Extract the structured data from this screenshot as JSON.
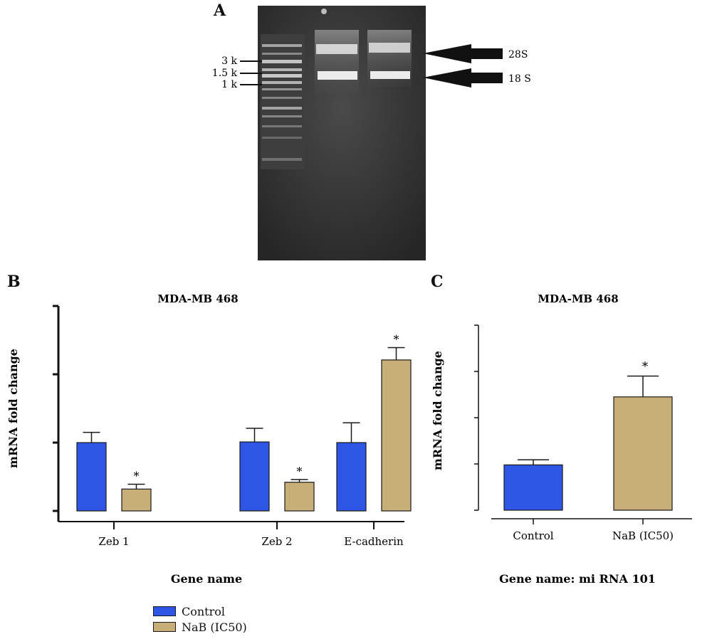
{
  "panels": {
    "a_label": "A",
    "b_label": "B",
    "c_label": "C"
  },
  "gel": {
    "ladder_labels": [
      "3 k",
      "1.5 k",
      "1 k"
    ],
    "band_labels": [
      "28S",
      "18 S"
    ]
  },
  "colors": {
    "control": "#2f55e6",
    "nab": "#c8ae78",
    "gel_background": "#3a3a3a",
    "axis": "#111111"
  },
  "legend": {
    "items": [
      {
        "label": "Control",
        "color": "#2f55e6"
      },
      {
        "label": "NaB (IC50)",
        "color": "#c8ae78"
      }
    ]
  },
  "chart_data": [
    {
      "type": "bar",
      "title": "MDA-MB 468",
      "xlabel": "Gene name",
      "ylabel": "mRNA fold change",
      "categories": [
        "Zeb 1",
        "Zeb 2",
        "E-cadherin"
      ],
      "ylim": [
        0,
        3
      ],
      "y_ticks": [
        0,
        1,
        2,
        3
      ],
      "y_tick_labels_shown": false,
      "series": [
        {
          "name": "Control",
          "values": [
            1.0,
            1.01,
            1.0
          ],
          "errors": [
            0.15,
            0.2,
            0.29
          ]
        },
        {
          "name": "NaB (IC50)",
          "values": [
            0.32,
            0.42,
            2.21
          ],
          "errors": [
            0.07,
            0.04,
            0.18
          ]
        }
      ],
      "annotations": [
        {
          "category": "Zeb 1",
          "series": "NaB (IC50)",
          "text": "*"
        },
        {
          "category": "Zeb 2",
          "series": "NaB (IC50)",
          "text": "*"
        },
        {
          "category": "E-cadherin",
          "series": "NaB (IC50)",
          "text": "*"
        }
      ],
      "legend": "bottom-left",
      "grid": false
    },
    {
      "type": "bar",
      "title": "MDA-MB 468",
      "xlabel": "Gene name: mi RNA 101",
      "ylabel": "mRNA fold change",
      "categories": [
        "Control",
        "NaB (IC50)"
      ],
      "ylim": [
        0,
        4
      ],
      "y_ticks": [
        0,
        1,
        2,
        3,
        4
      ],
      "y_tick_labels_shown": false,
      "values": [
        0.98,
        2.45
      ],
      "errors": [
        0.11,
        0.45
      ],
      "colors": [
        "#2f55e6",
        "#c8ae78"
      ],
      "annotations": [
        {
          "category": "NaB (IC50)",
          "text": "*"
        }
      ],
      "grid": false
    }
  ]
}
